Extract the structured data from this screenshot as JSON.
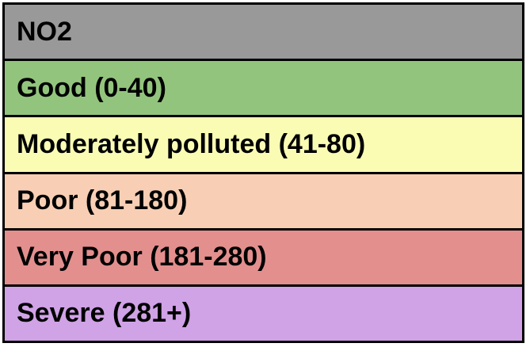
{
  "legend": {
    "header": {
      "label": "NO2",
      "color": "#999999"
    },
    "rows": [
      {
        "label": "Good (0-40)",
        "color": "#93c47d"
      },
      {
        "label": "Moderately polluted (41-80)",
        "color": "#fafcb4"
      },
      {
        "label": "Poor (81-180)",
        "color": "#f8cfb4"
      },
      {
        "label": "Very Poor (181-280)",
        "color": "#e38f8e"
      },
      {
        "label": "Severe (281+)",
        "color": "#d0a2e6"
      }
    ]
  }
}
